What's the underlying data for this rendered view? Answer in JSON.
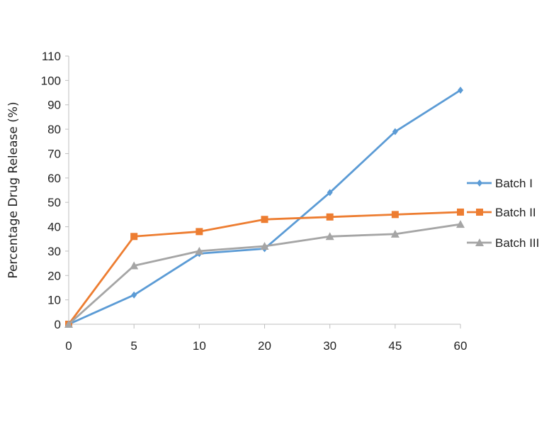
{
  "chart_data": {
    "type": "line",
    "title": "",
    "xlabel": "",
    "ylabel": "Percentage Drug Release  (%)",
    "categories": [
      "0",
      "5",
      "10",
      "20",
      "30",
      "45",
      "60"
    ],
    "ylim": [
      0,
      110
    ],
    "yticks": [
      0,
      10,
      20,
      30,
      40,
      50,
      60,
      70,
      80,
      90,
      100,
      110
    ],
    "grid": false,
    "legend_position": "right",
    "series": [
      {
        "name": "Batch I",
        "color": "#5b9bd5",
        "marker": "diamond",
        "values": [
          0,
          12,
          29,
          31,
          54,
          79,
          96
        ]
      },
      {
        "name": "Batch II",
        "color": "#ed7d31",
        "marker": "square",
        "values": [
          0,
          36,
          38,
          43,
          44,
          45,
          46
        ]
      },
      {
        "name": "Batch III",
        "color": "#a5a5a5",
        "marker": "triangle",
        "values": [
          0,
          24,
          30,
          32,
          36,
          37,
          41
        ]
      }
    ]
  },
  "axis_color": "#bfbfbf"
}
